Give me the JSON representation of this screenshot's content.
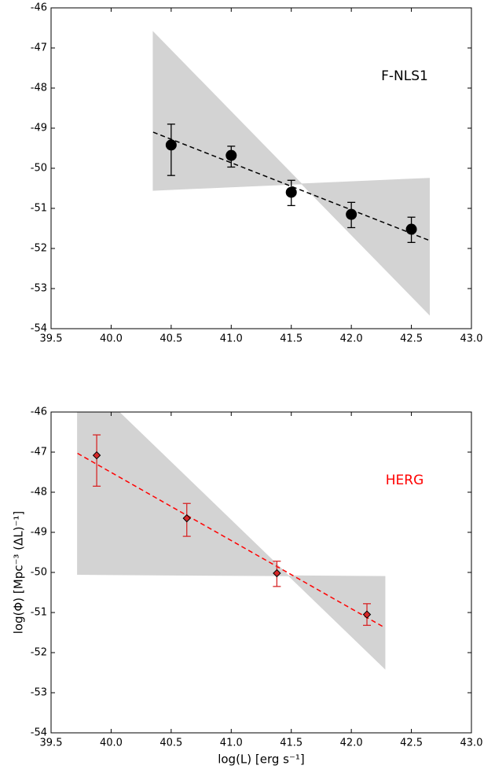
{
  "chart_data": [
    {
      "type": "scatter",
      "annotation": "F-NLS1",
      "annotation_color": "#000000",
      "marker": "circle",
      "color": "#000000",
      "x": [
        40.5,
        41.0,
        41.5,
        42.0,
        42.5
      ],
      "values": [
        -49.42,
        -49.68,
        -50.6,
        -51.15,
        -51.52
      ],
      "yerr_minus": [
        0.76,
        0.29,
        0.33,
        0.33,
        0.33
      ],
      "yerr_plus": [
        0.52,
        0.23,
        0.3,
        0.3,
        0.3
      ],
      "fit": {
        "x": [
          40.35,
          42.65
        ],
        "values": [
          -49.1,
          -51.8
        ],
        "color": "#000000"
      },
      "samples": {
        "x": [
          40.35,
          42.65
        ],
        "steep": [
          -46.6,
          -53.65
        ],
        "shallow": [
          -50.55,
          -50.25
        ],
        "color": "#d3d3d3"
      },
      "xlim": [
        39.5,
        43.0
      ],
      "ylim": [
        -54,
        -46
      ],
      "xticks": [
        39.5,
        {
          "value": 40,
          "label": "40.0"
        },
        40.5,
        {
          "value": 41,
          "label": "41.0"
        },
        41.5,
        {
          "value": 42,
          "label": "42.0"
        },
        42.5,
        {
          "value": 43,
          "label": "43.0"
        }
      ],
      "yticks": [
        -46,
        -47,
        -48,
        -49,
        -50,
        -51,
        -52,
        -53,
        -54
      ]
    },
    {
      "type": "scatter",
      "annotation": "HERG",
      "annotation_color": "#ff0000",
      "marker": "diamond",
      "color": "#d62728",
      "x_label": "log(L) [erg s⁻¹]",
      "y_label": "log(Φ) [Mpc⁻³ (ΔL)⁻¹]",
      "x": [
        39.88,
        40.63,
        41.38,
        42.13
      ],
      "values": [
        -47.08,
        -48.65,
        -50.02,
        -51.05
      ],
      "yerr_minus": [
        0.77,
        0.45,
        0.33,
        0.27
      ],
      "yerr_plus": [
        0.51,
        0.37,
        0.3,
        0.27
      ],
      "fit": {
        "x": [
          39.72,
          42.28
        ],
        "values": [
          -47.03,
          -51.38
        ],
        "color": "#ff0000"
      },
      "samples": {
        "x": [
          39.72,
          42.28
        ],
        "steep": [
          -45.0,
          -52.4
        ],
        "shallow": [
          -50.05,
          -50.1
        ],
        "color": "#d3d3d3"
      },
      "xlim": [
        39.5,
        43.0
      ],
      "ylim": [
        -54,
        -46
      ],
      "xticks": [
        39.5,
        {
          "value": 40,
          "label": "40.0"
        },
        40.5,
        {
          "value": 41,
          "label": "41.0"
        },
        41.5,
        {
          "value": 42,
          "label": "42.0"
        },
        42.5,
        {
          "value": 43,
          "label": "43.0"
        }
      ],
      "yticks": [
        -46,
        -47,
        -48,
        -49,
        -50,
        -51,
        -52,
        -53,
        -54
      ]
    }
  ]
}
